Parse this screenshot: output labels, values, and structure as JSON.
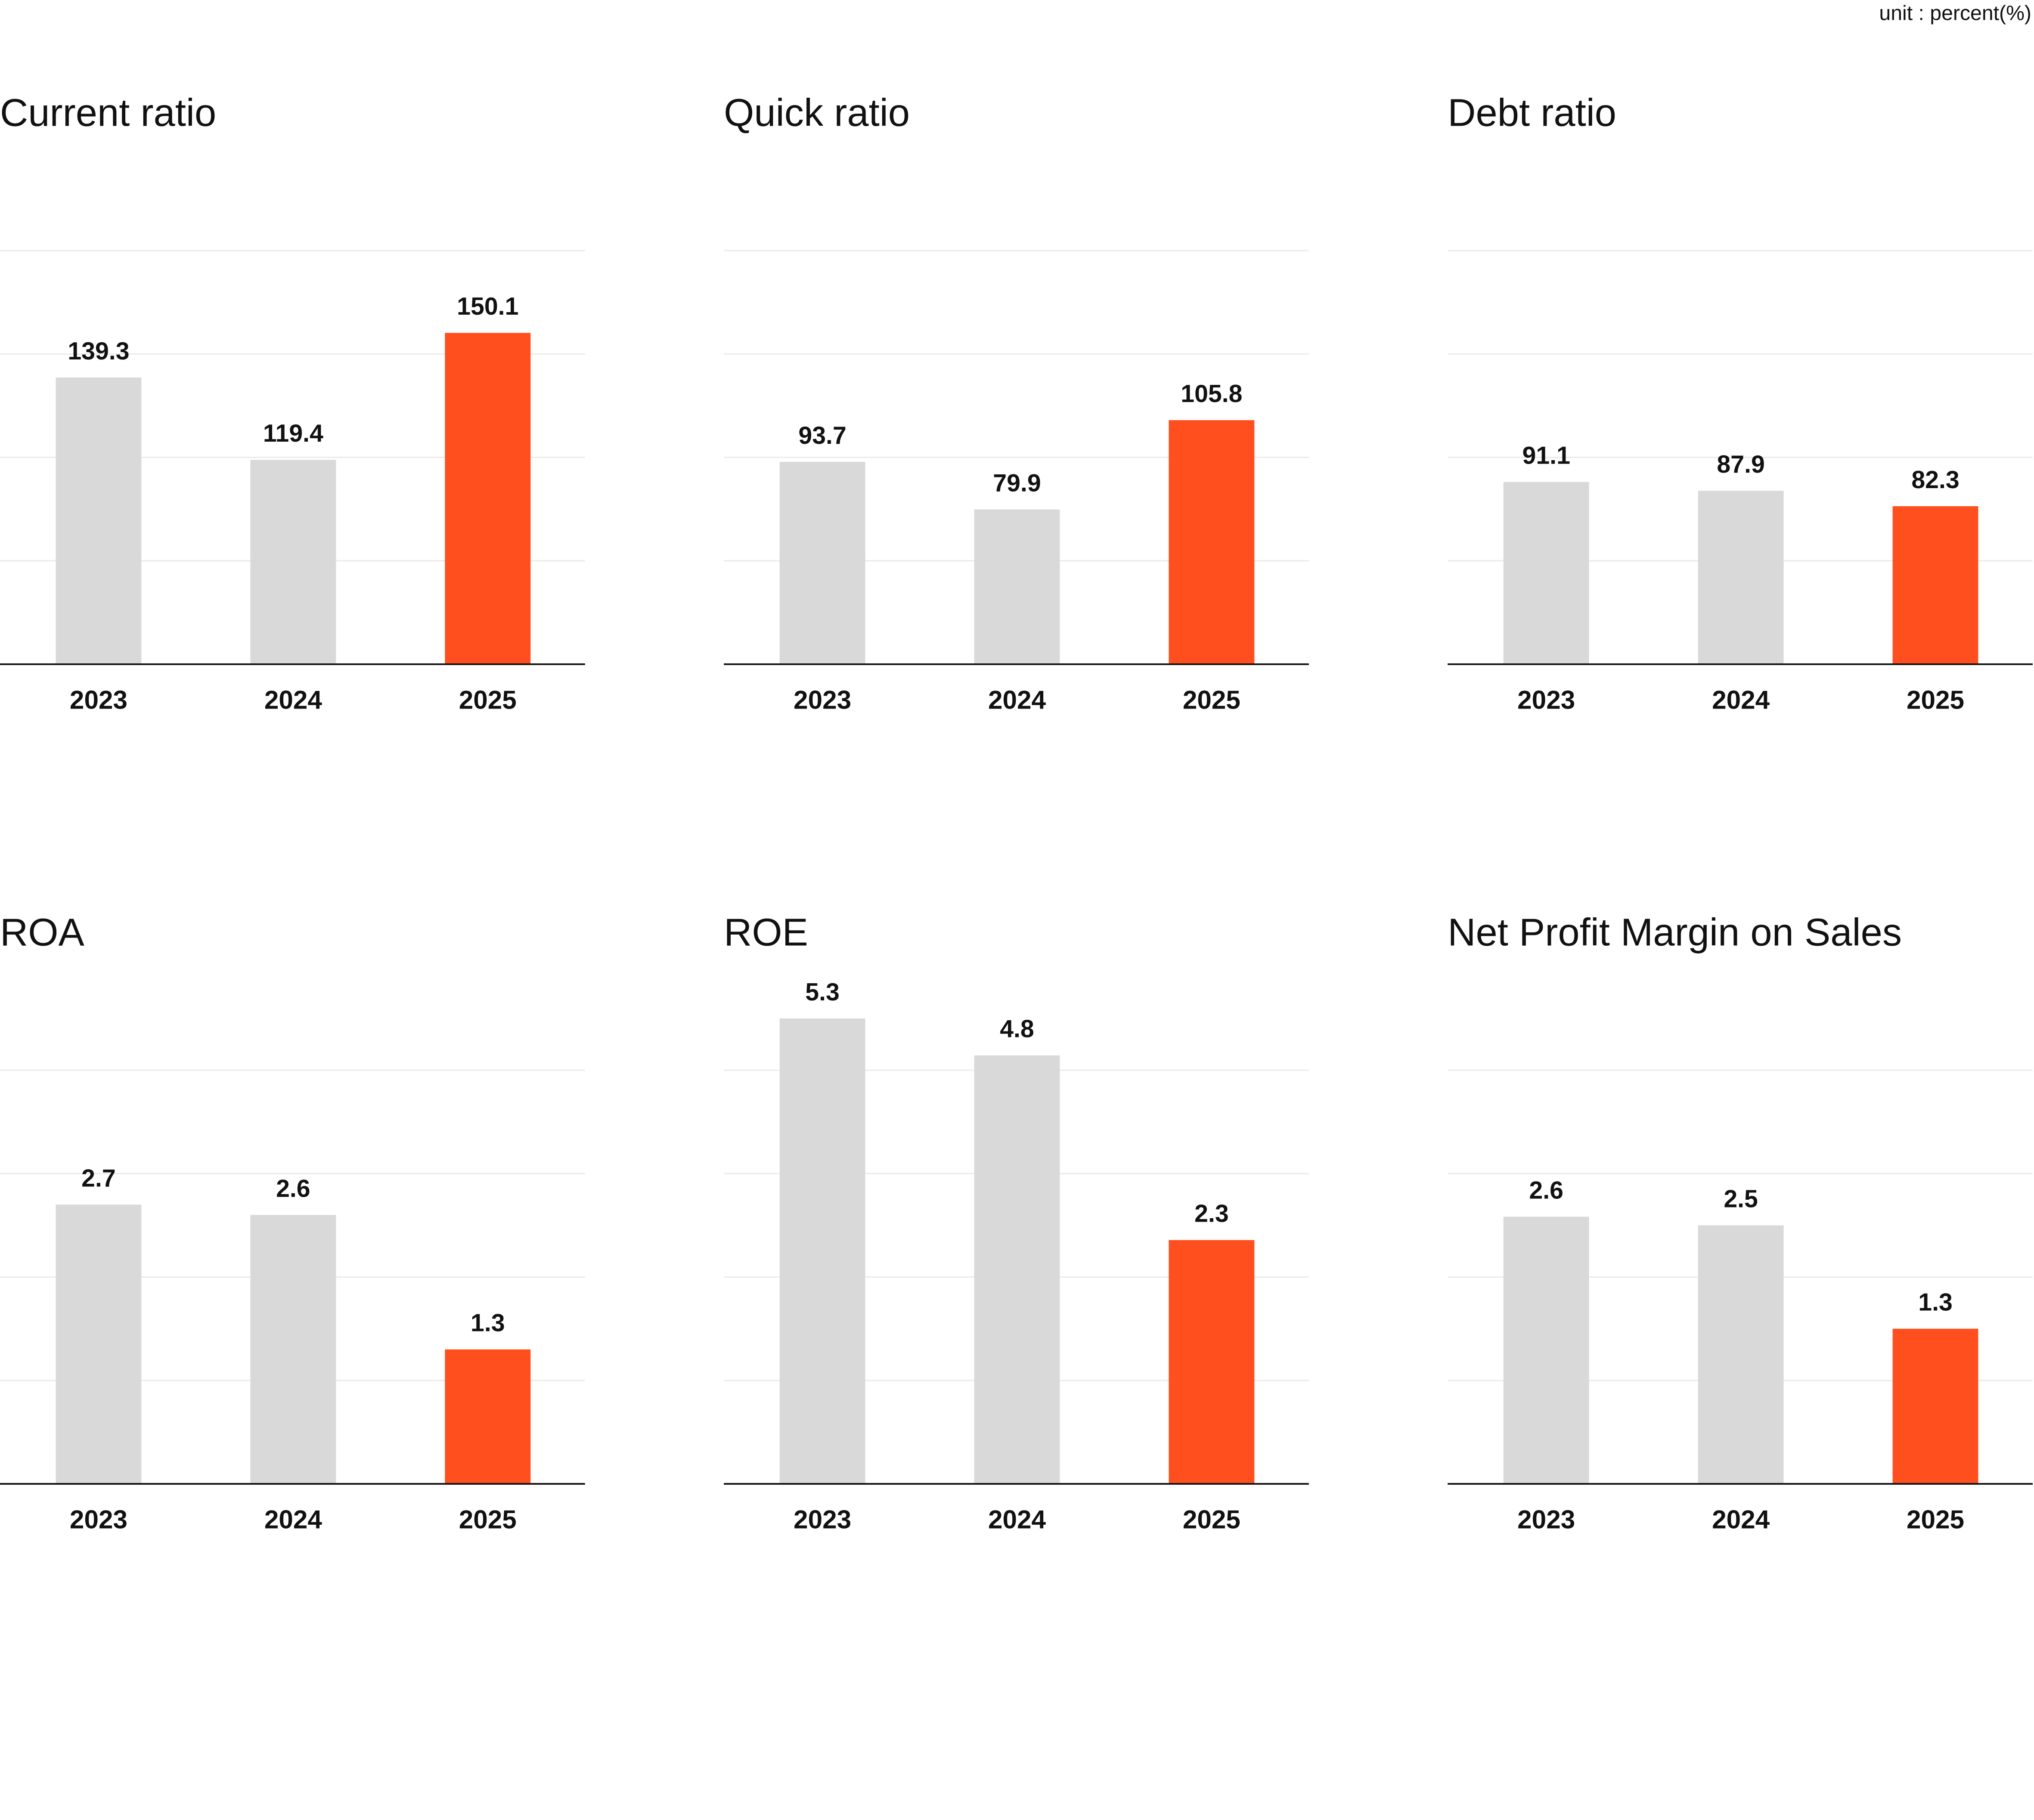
{
  "unit": "unit : percent(%)",
  "chart_data": [
    {
      "type": "bar",
      "title": "Current ratio",
      "categories": [
        "2023",
        "2024",
        "2025"
      ],
      "values": [
        139.3,
        119.4,
        150.1
      ],
      "colors": [
        "#d9d9d9",
        "#d9d9d9",
        "#ff4f1f"
      ],
      "ylim": [
        70,
        170
      ],
      "yticks": [
        70,
        95,
        120,
        145,
        170
      ],
      "grid": true
    },
    {
      "type": "bar",
      "title": "Quick ratio",
      "categories": [
        "2023",
        "2024",
        "2025"
      ],
      "values": [
        93.7,
        79.9,
        105.8
      ],
      "colors": [
        "#d9d9d9",
        "#d9d9d9",
        "#ff4f1f"
      ],
      "ylim": [
        35,
        155
      ],
      "yticks": [
        35,
        65,
        95,
        125,
        155
      ],
      "grid": true
    },
    {
      "type": "bar",
      "title": "Debt ratio",
      "categories": [
        "2023",
        "2024",
        "2025"
      ],
      "values": [
        91.1,
        87.9,
        82.3
      ],
      "colors": [
        "#d9d9d9",
        "#d9d9d9",
        "#ff4f1f"
      ],
      "ylim": [
        25,
        175
      ],
      "yticks": [
        25,
        62.5,
        100,
        137.5,
        175
      ],
      "grid": true
    },
    {
      "type": "bar",
      "title": "ROA",
      "categories": [
        "2023",
        "2024",
        "2025"
      ],
      "values": [
        2.7,
        2.6,
        1.3
      ],
      "colors": [
        "#d9d9d9",
        "#d9d9d9",
        "#ff4f1f"
      ],
      "ylim": [
        0,
        4
      ],
      "yticks": [
        0,
        1,
        2,
        3,
        4
      ],
      "grid": true
    },
    {
      "type": "bar",
      "title": "ROE",
      "categories": [
        "2023",
        "2024",
        "2025"
      ],
      "values": [
        5.3,
        4.8,
        2.3
      ],
      "colors": [
        "#d9d9d9",
        "#d9d9d9",
        "#ff4f1f"
      ],
      "ylim": [
        -1,
        4.6
      ],
      "yticks": [
        -1,
        0.4,
        1.8,
        3.2,
        4.6
      ],
      "grid": true
    },
    {
      "type": "bar",
      "title": "Net Profit Margin on Sales",
      "categories": [
        "2023",
        "2024",
        "2025"
      ],
      "values": [
        2.6,
        2.5,
        1.3
      ],
      "colors": [
        "#d9d9d9",
        "#d9d9d9",
        "#ff4f1f"
      ],
      "ylim": [
        -0.5,
        4.3
      ],
      "yticks": [
        -0.5,
        0.7,
        1.9,
        3.1,
        4.3
      ],
      "grid": true
    }
  ]
}
